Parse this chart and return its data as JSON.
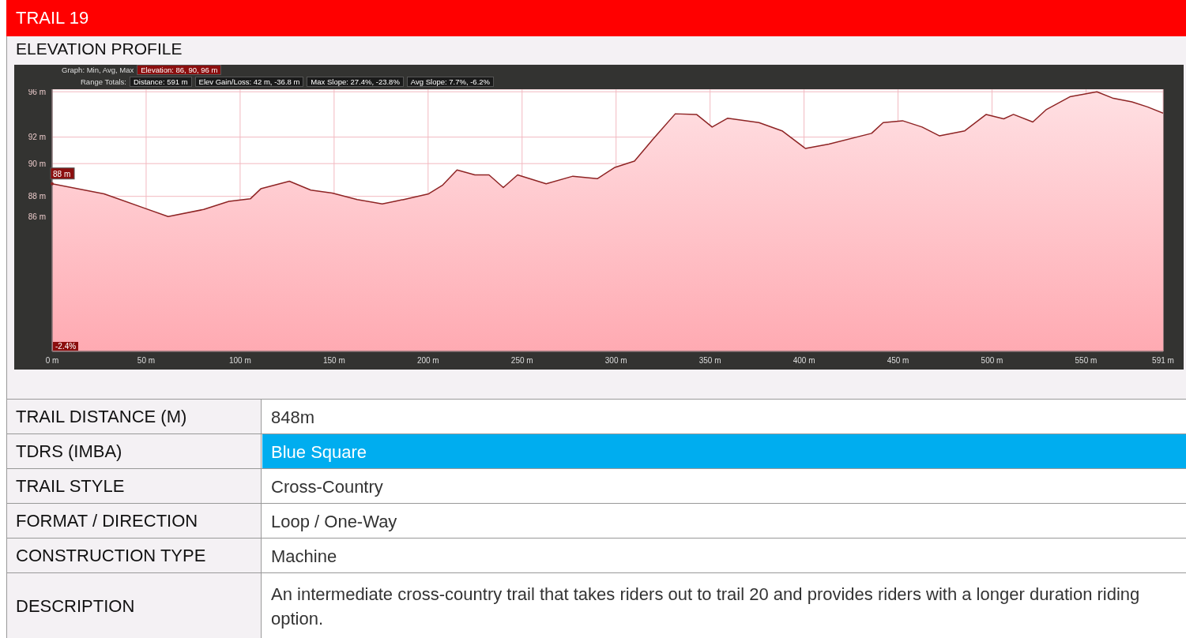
{
  "chart_data": [
    {
      "type": "area",
      "title": "TRAIL 19",
      "subtitle": "ELEVATION PROFILE",
      "annotations": [
        "Graph: Min, Avg, Max",
        "Elevation: 86, 90, 96 m",
        "Range Totals:",
        "Distance: 591 m",
        "Elev Gain/Loss: 42 m, -36.8 m",
        "Max Slope: 27.4%, -23.8%",
        "Avg Slope: 7.7%, -6.2%",
        {
          "text": "88 m",
          "x": 0,
          "y": 88.7
        },
        "-2.4%"
      ],
      "color": "#8e2424",
      "x": [
        0,
        27.6,
        49.4,
        61.7,
        80.6,
        94,
        105.4,
        111,
        126.2,
        137.6,
        149,
        162.3,
        175.6,
        187,
        200.3,
        207.8,
        215.4,
        224.9,
        232.4,
        240,
        247.6,
        262.8,
        277,
        290,
        299.4,
        309.8,
        320,
        331.5,
        342.8,
        351.1,
        359.4,
        376,
        388.3,
        400.7,
        413.2,
        435.9,
        442.1,
        452.4,
        462.8,
        472.1,
        485.5,
        496.9,
        506.2,
        511.4,
        521.7,
        529,
        541.4,
        555.8,
        564.1,
        574.4,
        582.7,
        591
      ],
      "values": [
        88.7,
        87.9,
        86.75,
        86.1,
        86.66,
        87.3,
        87.5,
        88.3,
        88.9,
        88.2,
        87.96,
        87.45,
        87.1,
        87.45,
        87.9,
        88.6,
        89.8,
        89.4,
        89.4,
        88.4,
        89.4,
        88.7,
        89.3,
        89.1,
        90.0,
        90.5,
        92.3,
        94.25,
        94.2,
        93.2,
        93.9,
        93.55,
        92.9,
        91.5,
        91.85,
        92.7,
        93.55,
        93.7,
        93.2,
        92.5,
        92.9,
        94.2,
        93.85,
        94.2,
        93.6,
        94.6,
        95.6,
        96.0,
        95.5,
        95.2,
        94.8,
        94.3
      ],
      "xlim": [
        0,
        591
      ],
      "xticks": [
        {
          "value": 0,
          "label": "0 m"
        },
        {
          "value": 50,
          "label": "50 m"
        },
        {
          "value": 100,
          "label": "100 m"
        },
        {
          "value": 150,
          "label": "150 m"
        },
        {
          "value": 200,
          "label": "200 m"
        },
        {
          "value": 250,
          "label": "250 m"
        },
        {
          "value": 300,
          "label": "300 m"
        },
        {
          "value": 350,
          "label": "350 m"
        },
        {
          "value": 400,
          "label": "400 m"
        },
        {
          "value": 450,
          "label": "450 m"
        },
        {
          "value": 500,
          "label": "500 m"
        },
        {
          "value": 550,
          "label": "550 m"
        },
        {
          "value": 591,
          "label": "591 m"
        }
      ],
      "ylim": [
        75.4,
        96.2
      ],
      "yticks": [
        {
          "value": 86.1,
          "label": "86 m"
        },
        {
          "value": 87.7,
          "label": "88 m"
        },
        {
          "value": 90.3,
          "label": "90 m"
        },
        {
          "value": 92.4,
          "label": "92 m"
        },
        {
          "value": 96.0,
          "label": "96 m"
        }
      ],
      "grid": true
    },
    {
      "type": "other",
      "annotations": [
        "TRAIL DISTANCE (M)",
        "848m",
        "TDRS (IMBA)",
        "Blue Square",
        "TRAIL STYLE",
        "Cross-Country",
        "FORMAT / DIRECTION",
        "Loop / One-Way",
        "CONSTRUCTION TYPE",
        "Machine",
        "DESCRIPTION",
        "An intermediate cross-country trail that takes riders out to trail 20 and provides riders with a longer duration riding option."
      ],
      "colors": [
        "#ffffff",
        "#00adef",
        "#ffffff",
        "#ffffff",
        "#ffffff",
        "#ffffff"
      ]
    }
  ]
}
